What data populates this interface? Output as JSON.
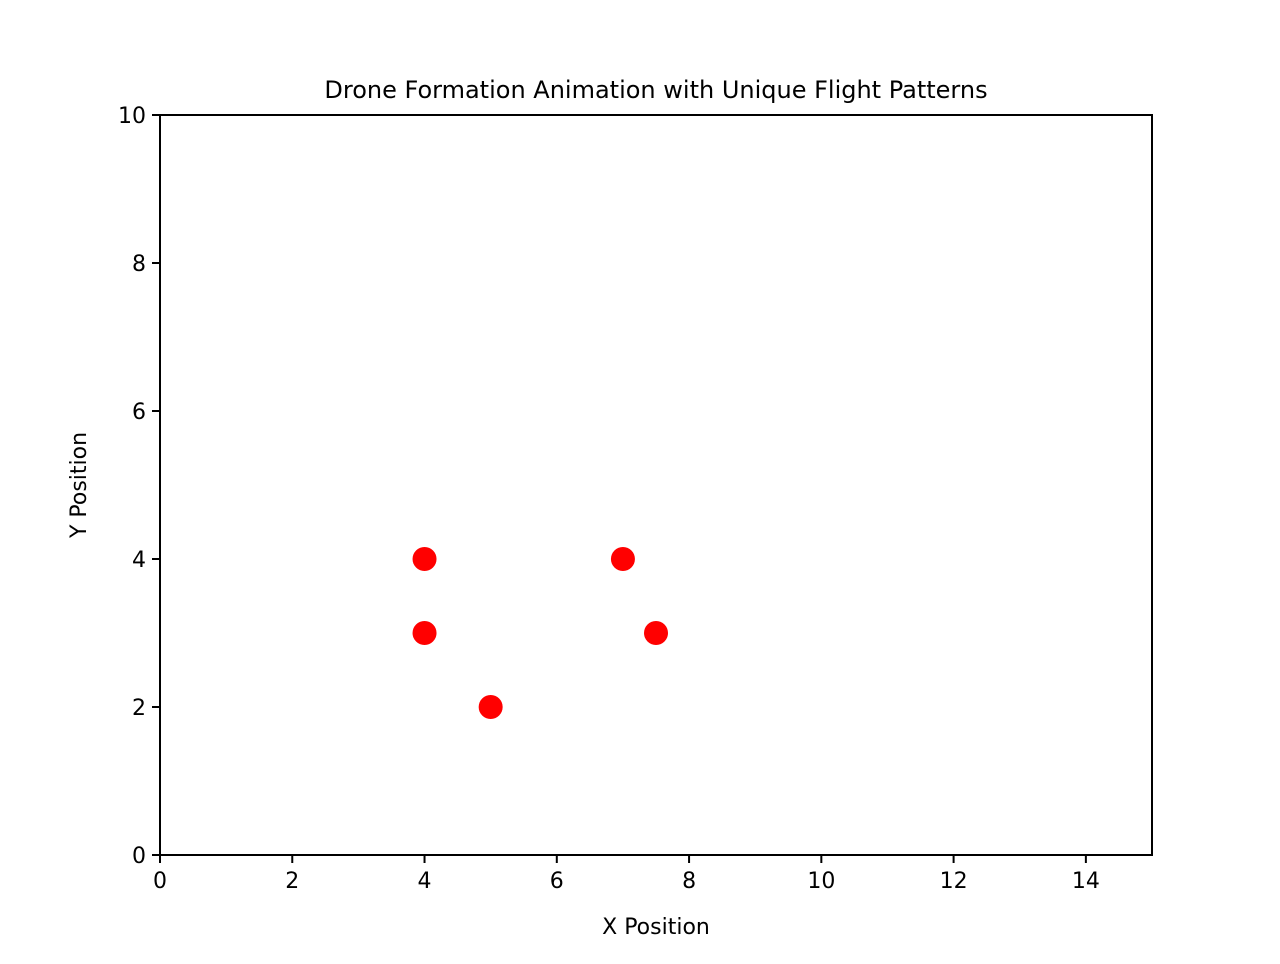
{
  "chart_data": {
    "type": "scatter",
    "title": "Drone Formation Animation with Unique Flight Patterns",
    "xlabel": "X Position",
    "ylabel": "Y Position",
    "xlim": [
      0,
      15
    ],
    "ylim": [
      0,
      10
    ],
    "xticks": [
      0,
      2,
      4,
      6,
      8,
      10,
      12,
      14
    ],
    "yticks": [
      0,
      2,
      4,
      6,
      8,
      10
    ],
    "grid": false,
    "marker_color": "#ff0000",
    "points": [
      {
        "x": 4,
        "y": 4
      },
      {
        "x": 4,
        "y": 3
      },
      {
        "x": 5,
        "y": 2
      },
      {
        "x": 7,
        "y": 4
      },
      {
        "x": 7.5,
        "y": 3
      }
    ]
  }
}
